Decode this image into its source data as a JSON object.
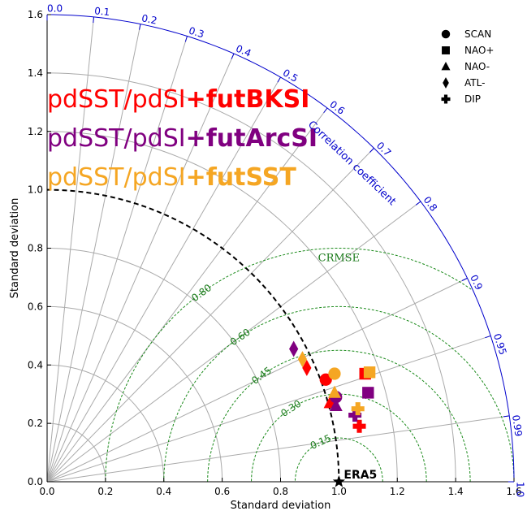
{
  "chart_data": {
    "type": "scatter",
    "subtype": "taylor-diagram",
    "xlabel": "Standard deviation",
    "ylabel": "Standard deviation",
    "xlim": [
      0,
      1.6
    ],
    "ylim": [
      0,
      1.6
    ],
    "x_ticks": [
      "0.0",
      "0.2",
      "0.4",
      "0.6",
      "0.8",
      "1.0",
      "1.2",
      "1.4",
      "1.6"
    ],
    "y_ticks": [
      "0.0",
      "0.2",
      "0.4",
      "0.6",
      "0.8",
      "1.0",
      "1.2",
      "1.4",
      "1.6"
    ],
    "correlation_axis_label": "Correlation coefficient",
    "correlation_ticks": [
      {
        "value": 0.0,
        "label": "0.0"
      },
      {
        "value": 0.1,
        "label": "0.1"
      },
      {
        "value": 0.2,
        "label": "0.2"
      },
      {
        "value": 0.3,
        "label": "0.3"
      },
      {
        "value": 0.4,
        "label": "0.4"
      },
      {
        "value": 0.5,
        "label": "0.5"
      },
      {
        "value": 0.6,
        "label": "0.6"
      },
      {
        "value": 0.7,
        "label": "0.7"
      },
      {
        "value": 0.8,
        "label": "0.8"
      },
      {
        "value": 0.9,
        "label": "0.9"
      },
      {
        "value": 0.95,
        "label": "0.95"
      },
      {
        "value": 0.99,
        "label": "0.99"
      },
      {
        "value": 1.0,
        "label": "1.0"
      }
    ],
    "grid_std": [
      0.2,
      0.4,
      0.6,
      0.8,
      1.2,
      1.4
    ],
    "reference": {
      "label": "ERA5",
      "std": 1.0
    },
    "crmse_label": "CRMSE",
    "crmse_contours": [
      {
        "value": 0.15,
        "label": "0.15"
      },
      {
        "value": 0.3,
        "label": "0.30"
      },
      {
        "value": 0.45,
        "label": "0.45"
      },
      {
        "value": 0.6,
        "label": "0.60"
      },
      {
        "value": 0.8,
        "label": "0.80"
      }
    ],
    "legend": [
      {
        "marker": "circle",
        "label": "SCAN"
      },
      {
        "marker": "square",
        "label": "NAO+"
      },
      {
        "marker": "triangle",
        "label": "NAO-"
      },
      {
        "marker": "diamond",
        "label": "ATL-"
      },
      {
        "marker": "cross",
        "label": "DIP"
      }
    ],
    "legend_position": "top-right",
    "experiments": [
      {
        "prefix": "pdSST/pdSI",
        "suffix": "+futBKSI",
        "color": "#ff0000"
      },
      {
        "prefix": "pdSST/pdSI",
        "suffix": "+futArcSI",
        "color": "#800080"
      },
      {
        "prefix": "pdSST/pdSI",
        "suffix": "+futSST",
        "color": "#f5a623"
      }
    ],
    "points": [
      {
        "experiment": 0,
        "marker": "circle",
        "x": 0.955,
        "y": 0.35
      },
      {
        "experiment": 0,
        "marker": "square",
        "x": 1.09,
        "y": 0.37
      },
      {
        "experiment": 0,
        "marker": "triangle",
        "x": 0.97,
        "y": 0.27
      },
      {
        "experiment": 0,
        "marker": "diamond",
        "x": 0.89,
        "y": 0.39
      },
      {
        "experiment": 0,
        "marker": "cross",
        "x": 1.07,
        "y": 0.19
      },
      {
        "experiment": 1,
        "marker": "circle",
        "x": 0.99,
        "y": 0.29
      },
      {
        "experiment": 1,
        "marker": "square",
        "x": 1.1,
        "y": 0.305
      },
      {
        "experiment": 1,
        "marker": "triangle",
        "x": 0.99,
        "y": 0.26
      },
      {
        "experiment": 1,
        "marker": "diamond",
        "x": 0.845,
        "y": 0.455
      },
      {
        "experiment": 1,
        "marker": "cross",
        "x": 1.055,
        "y": 0.228
      },
      {
        "experiment": 2,
        "marker": "circle",
        "x": 0.985,
        "y": 0.37
      },
      {
        "experiment": 2,
        "marker": "square",
        "x": 1.105,
        "y": 0.375
      },
      {
        "experiment": 2,
        "marker": "triangle",
        "x": 0.985,
        "y": 0.305
      },
      {
        "experiment": 2,
        "marker": "diamond",
        "x": 0.875,
        "y": 0.42
      },
      {
        "experiment": 2,
        "marker": "cross",
        "x": 1.065,
        "y": 0.25
      }
    ]
  }
}
